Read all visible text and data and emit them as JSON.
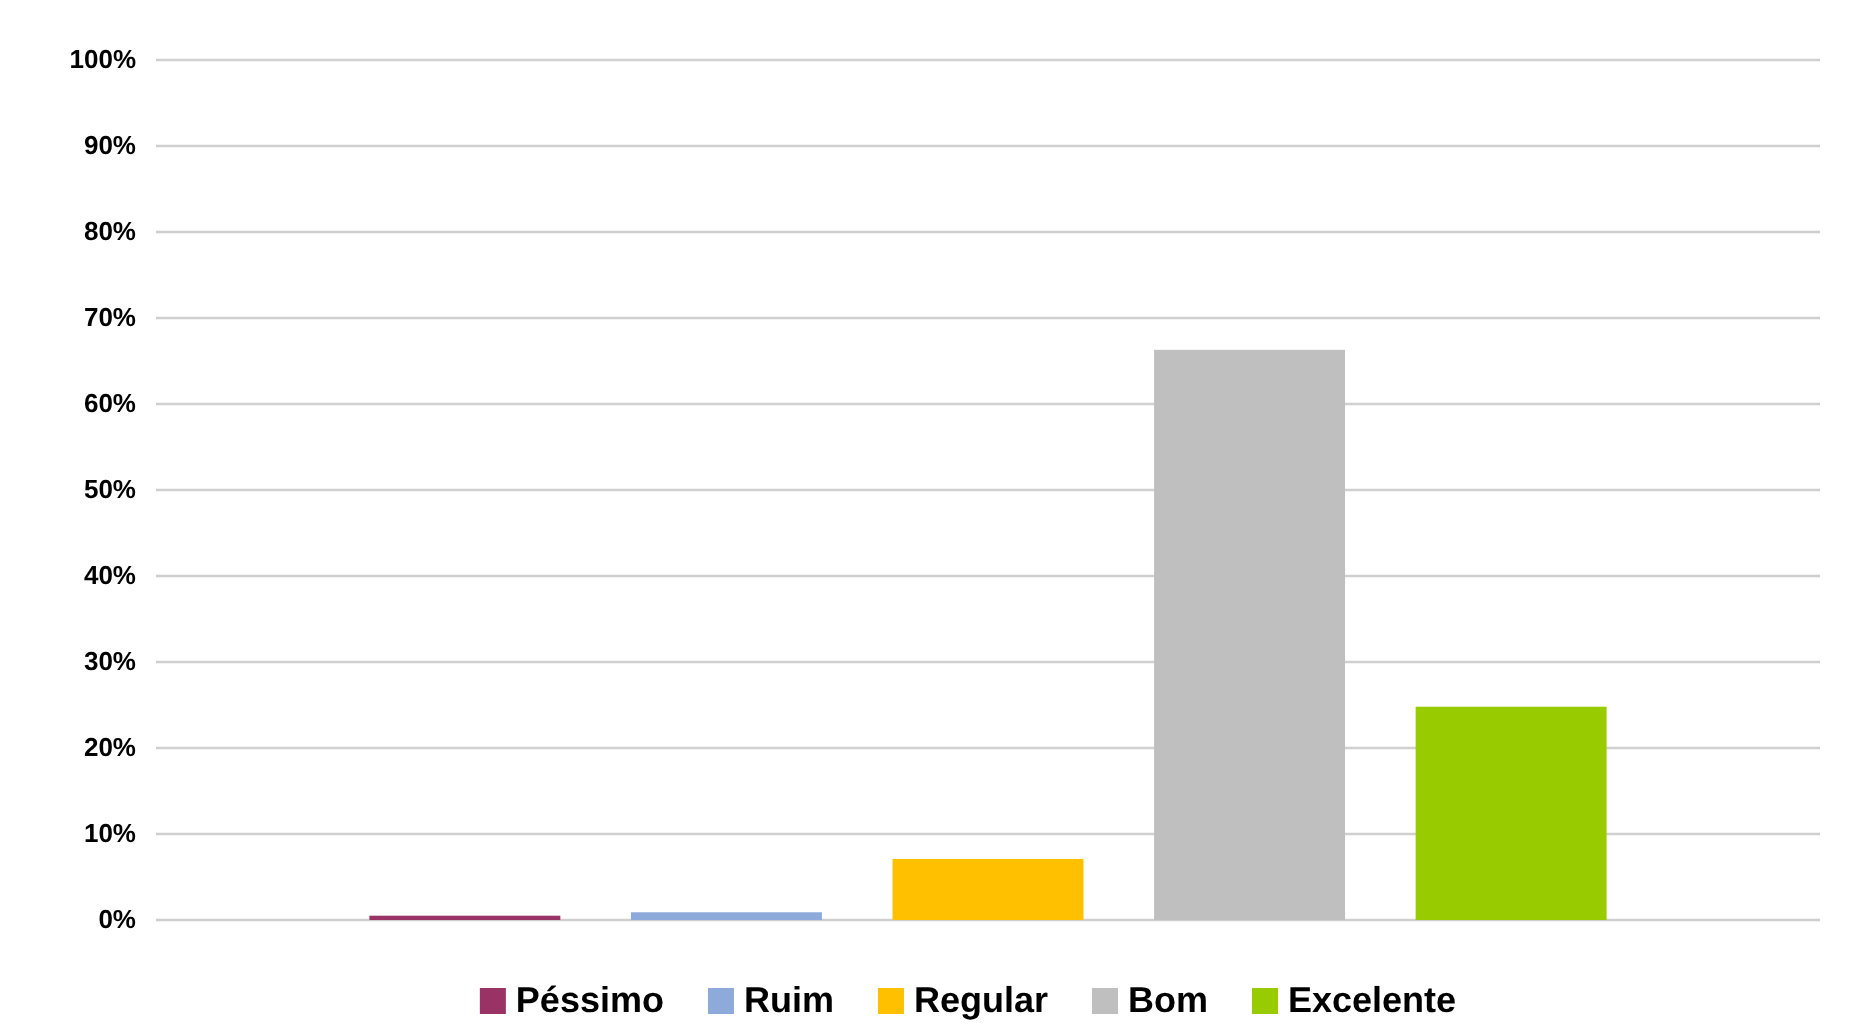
{
  "chart_data": {
    "type": "bar",
    "categories": [
      null
    ],
    "series": [
      {
        "name": "Péssimo",
        "color": "#993366",
        "values": [
          0.5
        ]
      },
      {
        "name": "Ruim",
        "color": "#8eaadb",
        "values": [
          0.9
        ]
      },
      {
        "name": "Regular",
        "color": "#ffc000",
        "values": [
          7.1
        ]
      },
      {
        "name": "Bom",
        "color": "#bfbfbf",
        "values": [
          66.3
        ]
      },
      {
        "name": "Excelente",
        "color": "#99cc00",
        "values": [
          24.8
        ]
      }
    ],
    "ylim": [
      0,
      100
    ],
    "yticks": [
      {
        "value": 0,
        "label": "0%"
      },
      {
        "value": 10,
        "label": "10%"
      },
      {
        "value": 20,
        "label": "20%"
      },
      {
        "value": 30,
        "label": "30%"
      },
      {
        "value": 40,
        "label": "40%"
      },
      {
        "value": 50,
        "label": "50%"
      },
      {
        "value": 60,
        "label": "60%"
      },
      {
        "value": 70,
        "label": "70%"
      },
      {
        "value": 80,
        "label": "80%"
      },
      {
        "value": 90,
        "label": "90%"
      },
      {
        "value": 100,
        "label": "100%"
      }
    ],
    "grid": "y",
    "legend": "bottom"
  }
}
